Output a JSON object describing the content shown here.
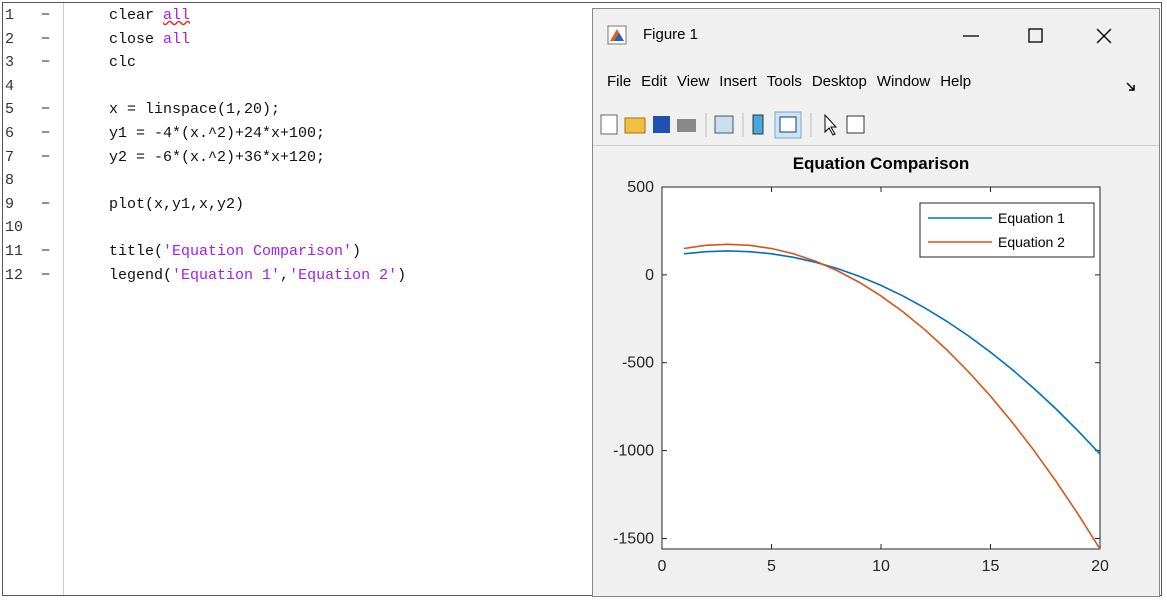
{
  "editor": {
    "lines": [
      {
        "number": "1",
        "marker": "−",
        "code": [
          {
            "text": "clear "
          },
          {
            "text": "all",
            "color": "#a020f0",
            "warning": true
          }
        ]
      },
      {
        "number": "2",
        "marker": "−",
        "code": [
          {
            "text": "close "
          },
          {
            "text": "all",
            "color": "#a020f0"
          }
        ]
      },
      {
        "number": "3",
        "marker": "−",
        "code": [
          {
            "text": "clc"
          }
        ]
      },
      {
        "number": "4",
        "code": []
      },
      {
        "number": "5",
        "marker": "−",
        "code": [
          {
            "text": "x = linspace(1,20);"
          }
        ]
      },
      {
        "number": "6",
        "marker": "−",
        "code": [
          {
            "text": "y1 = -4*(x.^2)+24*x+100;"
          }
        ]
      },
      {
        "number": "7",
        "marker": "−",
        "code": [
          {
            "text": "y2 = -6*(x.^2)+36*x+120;"
          }
        ]
      },
      {
        "number": "8",
        "code": []
      },
      {
        "number": "9",
        "marker": "−",
        "code": [
          {
            "text": "plot(x,y1,x,y2)"
          }
        ]
      },
      {
        "number": "10",
        "code": []
      },
      {
        "number": "11",
        "marker": "−",
        "code": [
          {
            "text": "title("
          },
          {
            "text": "'Equation Comparison'",
            "color": "#a020f0"
          },
          {
            "text": ")"
          }
        ]
      },
      {
        "number": "12",
        "marker": "−",
        "code": [
          {
            "text": "legend("
          },
          {
            "text": "'Equation 1'",
            "color": "#a020f0"
          },
          {
            "text": ","
          },
          {
            "text": "'Equation 2'",
            "color": "#a020f0"
          },
          {
            "text": ")"
          }
        ]
      }
    ]
  },
  "figure": {
    "title": "Figure 1",
    "menu": [
      "File",
      "Edit",
      "View",
      "Insert",
      "Tools",
      "Desktop",
      "Window",
      "Help"
    ]
  },
  "chart_data": {
    "type": "line",
    "title": "Equation Comparison",
    "x": [
      1,
      2,
      3,
      4,
      5,
      6,
      7,
      8,
      9,
      10,
      11,
      12,
      13,
      14,
      15,
      16,
      17,
      18,
      19,
      20
    ],
    "series": [
      {
        "name": "Equation 1",
        "color": "#0072bd",
        "values": [
          120,
          132,
          136,
          132,
          120,
          100,
          72,
          36,
          -8,
          -60,
          -120,
          -188,
          -264,
          -348,
          -440,
          -540,
          -648,
          -764,
          -888,
          -1020
        ]
      },
      {
        "name": "Equation 2",
        "color": "#d95319",
        "values": [
          150,
          168,
          174,
          168,
          150,
          120,
          78,
          24,
          -42,
          -120,
          -210,
          -312,
          -426,
          -552,
          -690,
          -840,
          -1002,
          -1176,
          -1362,
          -1560
        ]
      }
    ],
    "xlim": [
      0,
      20
    ],
    "xticks": [
      0,
      5,
      10,
      15,
      20
    ],
    "ylim": [
      -1560,
      500
    ],
    "yticks": [
      -1500,
      -1000,
      -500,
      0,
      500
    ],
    "legend": "top-right",
    "grid": false
  }
}
